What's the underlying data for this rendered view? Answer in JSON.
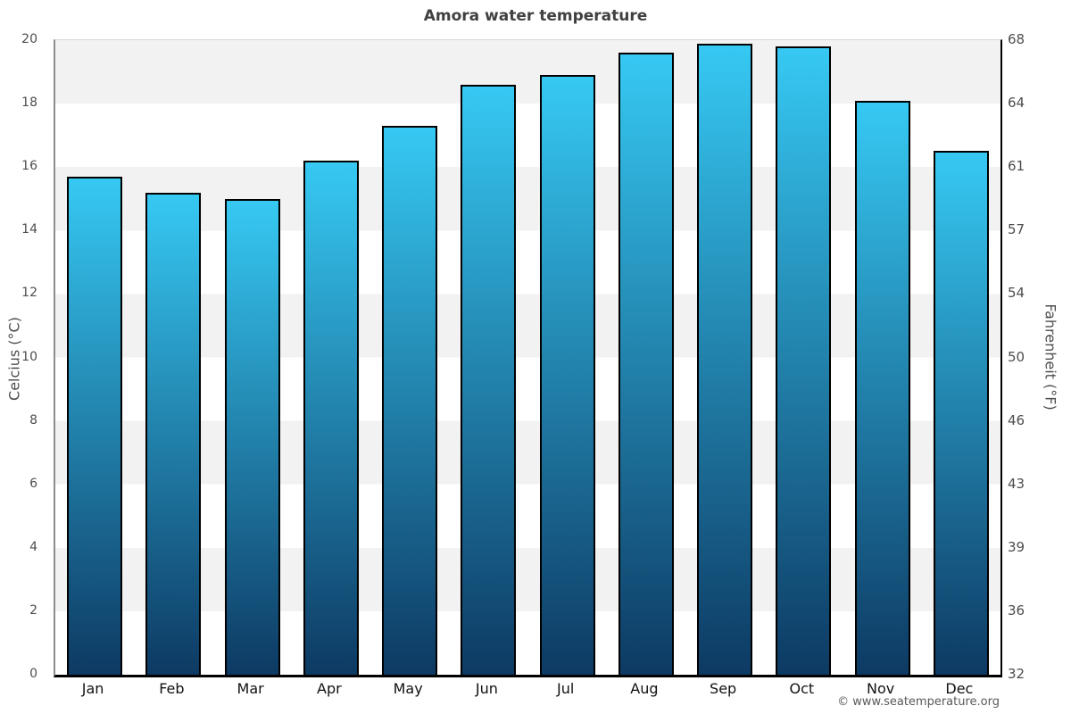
{
  "title": "Amora water temperature",
  "footer": {
    "credit": "© www.seatemperature.org"
  },
  "chart_data": {
    "type": "bar",
    "title": "Amora water temperature",
    "categories": [
      "Jan",
      "Feb",
      "Mar",
      "Apr",
      "May",
      "Jun",
      "Jul",
      "Aug",
      "Sep",
      "Oct",
      "Nov",
      "Dec"
    ],
    "series": [
      {
        "name": "Water temperature (°C)",
        "values": [
          15.7,
          15.2,
          15.0,
          16.2,
          17.3,
          18.6,
          18.9,
          19.6,
          19.9,
          19.8,
          18.1,
          16.5
        ]
      }
    ],
    "ylabel_left": "Celcius (°C)",
    "ylabel_right": "Fahrenheit (°F)",
    "yticks_celsius": [
      0,
      2,
      4,
      6,
      8,
      10,
      12,
      14,
      16,
      18,
      20
    ],
    "yticks_fahrenheit": [
      32,
      36,
      39,
      43,
      46,
      50,
      54,
      57,
      61,
      64,
      68
    ],
    "ylim": [
      0,
      20
    ],
    "xlabel": "",
    "legend": "none",
    "grid": "alternating horizontal bands every 2°C",
    "colors": {
      "bar_top": "#36c9f3",
      "bar_bottom": "#0d3a63",
      "bar_border": "#000000",
      "band_gray": "#f2f2f2",
      "band_white": "#ffffff",
      "axis_left": "#8c8c8c",
      "axis_dark": "#000000",
      "title_text": "#404040",
      "tick_text": "#4d4d4d",
      "month_text": "#111111",
      "footer_text": "#595959"
    }
  }
}
